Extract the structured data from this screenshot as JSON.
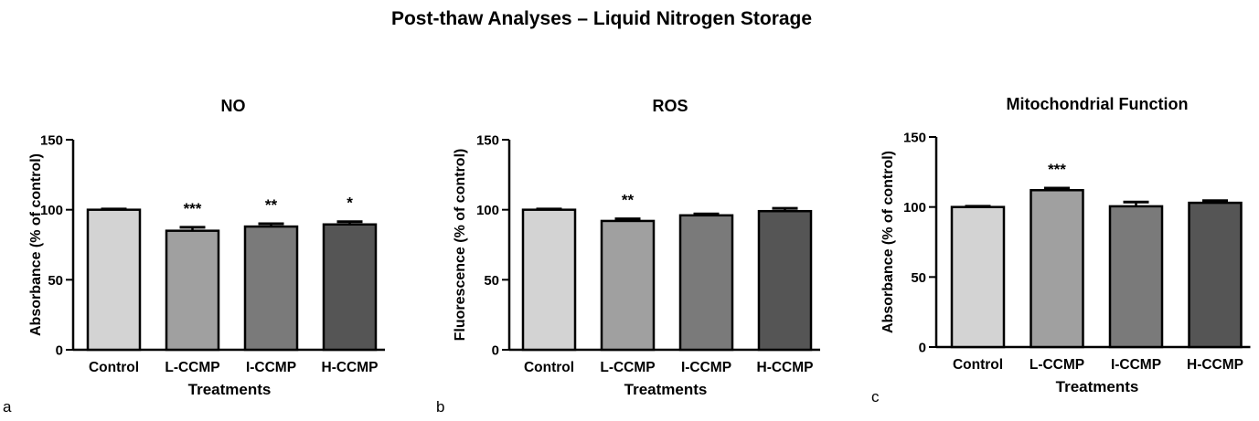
{
  "figure_title": "Post-thaw Analyses – Liquid Nitrogen Storage",
  "colors": {
    "Control": "#d3d3d3",
    "L-CCMP": "#a0a0a0",
    "I-CCMP": "#7a7a7a",
    "H-CCMP": "#555555",
    "stroke": "#000000"
  },
  "chart_data": [
    {
      "panel": "a",
      "type": "bar",
      "title": "NO",
      "xlabel": "Treatments",
      "ylabel": "Absorbance (% of control)",
      "ylim": [
        0,
        150
      ],
      "yticks": [
        0,
        50,
        100,
        150
      ],
      "categories": [
        "Control",
        "L-CCMP",
        "I-CCMP",
        "H-CCMP"
      ],
      "values": [
        100,
        85,
        88,
        89.5
      ],
      "errors": [
        0.5,
        2.5,
        2,
        2
      ],
      "annotations": [
        "",
        "***",
        "**",
        "*"
      ]
    },
    {
      "panel": "b",
      "type": "bar",
      "title": "ROS",
      "xlabel": "Treatments",
      "ylabel": "Fluorescence (% of control)",
      "ylim": [
        0,
        150
      ],
      "yticks": [
        0,
        50,
        100,
        150
      ],
      "categories": [
        "Control",
        "L-CCMP",
        "I-CCMP",
        "H-CCMP"
      ],
      "values": [
        100,
        92,
        96,
        99
      ],
      "errors": [
        0.5,
        1.5,
        1,
        2
      ],
      "annotations": [
        "",
        "**",
        "",
        ""
      ]
    },
    {
      "panel": "c",
      "type": "bar",
      "title": "Mitochondrial Function",
      "xlabel": "Treatments",
      "ylabel": "Absorbance (% of control)",
      "ylim": [
        0,
        150
      ],
      "yticks": [
        0,
        50,
        100,
        150
      ],
      "categories": [
        "Control",
        "L-CCMP",
        "I-CCMP",
        "H-CCMP"
      ],
      "values": [
        100,
        112,
        100.5,
        103
      ],
      "errors": [
        0.5,
        1.5,
        3,
        1.5
      ],
      "annotations": [
        "",
        "***",
        "",
        ""
      ]
    }
  ]
}
